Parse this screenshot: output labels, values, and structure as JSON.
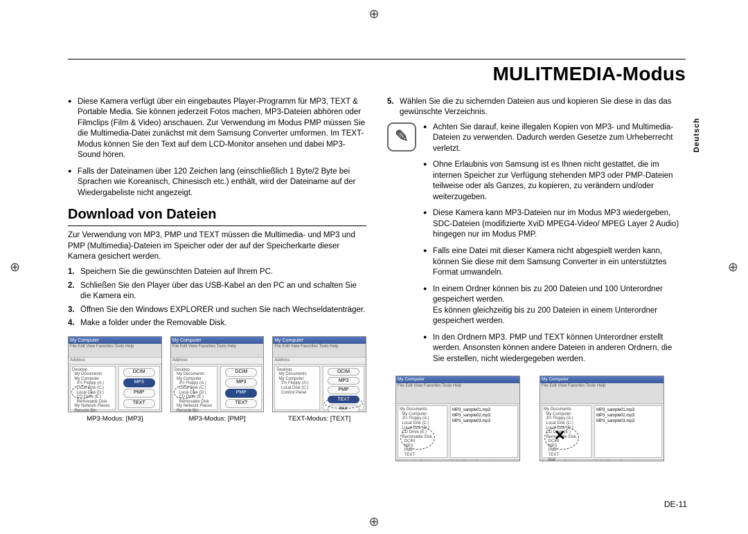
{
  "main_title": "MULITMEDIA-Modus",
  "side_label": "Deutsch",
  "page_number": "DE-11",
  "registration_mark": "⊕",
  "left_col": {
    "bullets": [
      "Diese Kamera verfügt über ein eingebautes Player-Programm für MP3, TEXT & Portable Media. Sie können jederzeit Fotos machen, MP3-Dateien abhören oder Filmclips (Film & Video) anschauen. Zur Verwendung im Modus PMP müssen Sie die Multimedia-Datei zunächst mit dem Samsung Converter umformen. Im TEXT-Modus können Sie den Text auf dem LCD-Monitor ansehen und dabei MP3-Sound hören.",
      "Falls der Dateinamen über 120 Zeichen lang (einschließlich 1 Byte/2 Byte bei Sprachen wie Koreanisch, Chinesisch etc.) enthält, wird der Dateiname auf der Wiedergabeliste nicht angezeigt."
    ],
    "section_title": "Download von Dateien",
    "intro": "Zur Verwendung von MP3, PMP und TEXT müssen die Multimedia- und MP3 und PMP (Multimedia)-Dateien im Speicher oder der auf der Speicherkarte dieser Kamera gesichert werden.",
    "steps": [
      {
        "n": "1.",
        "t": "Speichern Sie die gewünschten Dateien auf Ihrem PC."
      },
      {
        "n": "2.",
        "t": "Schließen Sie den Player über das USB-Kabel an den PC an und schalten Sie die Kamera ein."
      },
      {
        "n": "3.",
        "t": "Öffnen Sie den Windows EXPLORER und suchen Sie nach Wechseldatenträger."
      },
      {
        "n": "4.",
        "t": "Make a folder under the Removable Disk."
      }
    ],
    "screens": [
      {
        "caption": "MP3-Modus: [MP3]",
        "title": "My Computer",
        "menu": "File  Edit  View  Favorites  Tools  Help",
        "addr": "Address",
        "tree": "Desktop\n  My Documents\n  My Computer\n    3½ Floppy (A:)\n    Local Disk (C:)\n    Local Disk (D:)\n    CD Drive (E:)\n    Removable Disk\n  My Network Places\n  Recycle Bin\n  Shared Documents",
        "folders": [
          "DCIM",
          "MP3",
          "PMP",
          "TEXT"
        ],
        "selected": 1
      },
      {
        "caption": "MP3-Modus: [PMP]",
        "title": "My Computer",
        "menu": "File  Edit  View  Favorites  Tools  Help",
        "addr": "Address",
        "tree": "Desktop\n  My Documents\n  My Computer\n    3½ Floppy (A:)\n    Local Disk (C:)\n    Local Disk (D:)\n    CD Drive (E:)\n    Removable Disk\n  My Network Places\n  Recycle Bin\n  Shared Documents",
        "folders": [
          "DCIM",
          "MP3",
          "PMP",
          "TEXT"
        ],
        "selected": 2
      },
      {
        "caption": "TEXT-Modus: [TEXT]",
        "title": "My Computer",
        "menu": "File  Edit  View  Favorites  Tools  Help",
        "addr": "Address",
        "tree": "Desktop\n  My Documents\n  My Computer\n    3½ Floppy (A:)\n    Local Disk (C:)\n    Control Panel\n\n\n\n\n",
        "folders": [
          "DCIM",
          "MP3",
          "PMP",
          "TEXT",
          "tour",
          "Control Panel"
        ],
        "selected": 3
      }
    ]
  },
  "right_col": {
    "step5": {
      "n": "5.",
      "t": "Wählen Sie die zu sichernden Dateien aus und kopieren Sie diese in das das gewünschte Verzeichnis."
    },
    "note_bullets": [
      "Achten Sie darauf, keine illegalen Kopien von MP3- und Multimedia-Dateien zu verwenden. Dadurch werden Gesetze zum Urheberrecht verletzt.",
      "Ohne Erlaubnis von Samsung ist es Ihnen nicht gestattet, die im internen Speicher zur Verfügung stehenden MP3 oder PMP-Dateien teilweise oder als Ganzes, zu kopieren, zu verändern und/oder weiterzugeben.",
      "Diese Kamera kann MP3-Dateien nur im Modus MP3 wiedergeben, SDC-Dateien (modifizierte XviD MPEG4-Video/ MPEG Layer 2 Audio) hingegen nur im Modus PMP.",
      "Falls eine Datei mit dieser Kamera nicht abgespielt werden kann, können Sie diese mit dem Samsung Converter in ein unterstütztes Format umwandeln.",
      "In einem Ordner können bis zu 200 Dateien und 100 Unterordner gespeichert werden.\nEs können gleichzeitig bis zu 200 Dateien in einem Unterordner gespeichert werden.",
      "In den Ordnern MP3. PMP und TEXT können Unterordner erstellt werden. Ansonsten können andere Dateien in anderen Ordnern, die Sie erstellen, nicht wiedergegeben werden."
    ],
    "screens2": {
      "left": {
        "title": "My Computer",
        "menu": "File  Edit  View  Favorites  Tools  Help",
        "tree": "My Documents\n  My Computer\n  3½ Floppy (A:)\n  Local Disk (C:)\n  Local Disk (D:)\n  CD Drive (E:)\n  Removable Disk\n    DCIM\n    MP3\n    PMP\n    TEXT",
        "list": "MP3_sample01.mp3\nMP3_sample02.mp3\nMP3_sample03.mp3",
        "status": "3 object(s) (Disk free space: 22.2 MB)          My Computer"
      },
      "right": {
        "title": "My Computer",
        "menu": "File  Edit  View  Favorites  Tools  Help",
        "tree": "My Documents\n  My Computer\n  3½ Floppy (A:)\n  Local Disk (C:)\n  Local Disk (D:)\n  CD Drive (E:)\n  Removable Disk\n    DCIM\n    MP3\n    PMP\n    TEXT\n    tour",
        "list": "MP3_sample01.mp3\nMP3_sample02.mp3\nMP3_sample03.mp3",
        "status": "3 object(s) (Disk free space: 22.2 MB)          My Computer"
      }
    }
  }
}
